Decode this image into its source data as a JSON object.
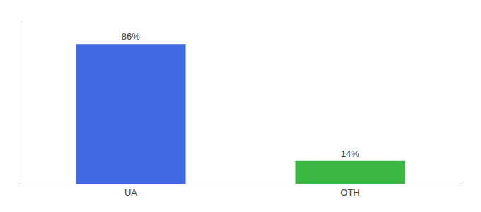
{
  "chart_data": {
    "type": "bar",
    "categories": [
      "UA",
      "OTH"
    ],
    "values": [
      86,
      14
    ],
    "value_labels": [
      "86%",
      "14%"
    ],
    "colors": [
      "#4169E1",
      "#3CB943"
    ],
    "data_labels": true,
    "ylim": [
      0,
      100
    ],
    "grid": false,
    "tick_labels": "x"
  }
}
